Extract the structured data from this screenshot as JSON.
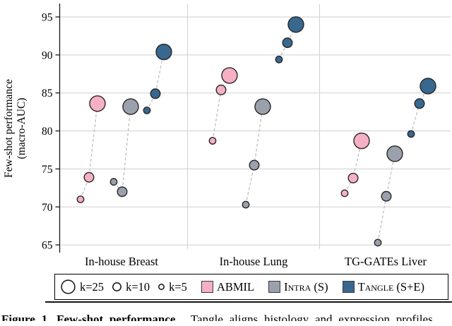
{
  "chart_data": {
    "type": "scatter",
    "title": "",
    "ylabel": "Few-shot performance (macro-AUC)",
    "ylabel_lines": [
      "Few-shot performance",
      "(macro-AUC)"
    ],
    "ylim": [
      63.5,
      96.5
    ],
    "yticks": [
      65,
      70,
      75,
      80,
      85,
      90,
      95
    ],
    "grid": "horizontal gridlines plus vertical category separators",
    "legend_position": "bottom box",
    "categories": [
      "In-house Breast",
      "In-house Lung",
      "TG-GATEs Liver"
    ],
    "k_values": [
      "k=5",
      "k=10",
      "k=25"
    ],
    "values_note": "values[category_index] = [k=5, k=10, k=25] macro-AUC",
    "series": [
      {
        "name": "ABMIL",
        "color": "#f6b0c3",
        "values": [
          [
            71.0,
            73.9,
            83.6
          ],
          [
            78.7,
            85.4,
            87.3
          ],
          [
            71.8,
            73.8,
            78.7
          ]
        ]
      },
      {
        "name": "Intra (S)",
        "color": "#9ba1ac",
        "values": [
          [
            73.3,
            72.0,
            83.2
          ],
          [
            70.3,
            75.5,
            83.2
          ],
          [
            65.3,
            71.4,
            77.0
          ]
        ]
      },
      {
        "name": "Tangle (S+E)",
        "color": "#39688f",
        "values": [
          [
            82.7,
            84.9,
            90.4
          ],
          [
            89.4,
            91.6,
            94.0
          ],
          [
            79.6,
            83.6,
            85.9
          ]
        ]
      }
    ],
    "style": {
      "gridline_color": "#cfcfcf",
      "axis_color": "#1a1a1a",
      "trend_line_color": "#b9b9b9",
      "point_stroke_color": "#262626"
    }
  },
  "legend": {
    "sizes": [
      {
        "label": "k=25"
      },
      {
        "label": "k=10"
      },
      {
        "label": "k=5"
      }
    ]
  },
  "caption": {
    "bold": "Figure 1. Few-shot performance.",
    "rest": "Tangle aligns histology and expression profiles"
  }
}
